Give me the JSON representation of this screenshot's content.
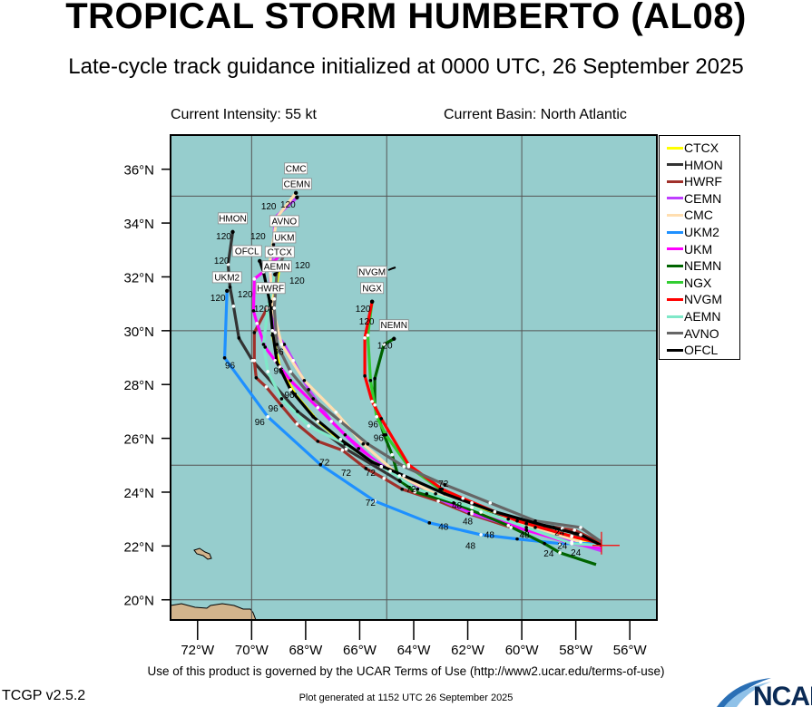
{
  "header": {
    "title": "TROPICAL STORM HUMBERTO (AL08)",
    "subtitle": "Late-cycle track guidance initialized at 0000 UTC, 26 September 2025",
    "current_intensity": "Current Intensity: 55 kt",
    "current_basin": "Current Basin: North Atlantic"
  },
  "footer": {
    "terms": "Use of this product is governed by the UCAR Terms of Use (http://www2.ucar.edu/terms-of-use)",
    "version": "TCGP v2.5.2",
    "generated": "Plot generated at 1152 UTC   26 September 2025",
    "logo_text": "NCAR"
  },
  "map": {
    "lon_range": [
      -73,
      -55
    ],
    "lat_range": [
      19.25,
      37.27
    ],
    "gridlines_lon": [
      -70,
      -65,
      -60
    ],
    "gridlines_lat": [
      20,
      25,
      30,
      35
    ],
    "ocean_color": "#96cdcd",
    "land_color": "#d2b48c",
    "lon_ticks": [
      {
        "value": -72,
        "label": "72°W"
      },
      {
        "value": -70,
        "label": "70°W"
      },
      {
        "value": -68,
        "label": "68°W"
      },
      {
        "value": -66,
        "label": "66°W"
      },
      {
        "value": -64,
        "label": "64°W"
      },
      {
        "value": -62,
        "label": "62°W"
      },
      {
        "value": -60,
        "label": "60°W"
      },
      {
        "value": -58,
        "label": "58°W"
      },
      {
        "value": -56,
        "label": "56°W"
      }
    ],
    "lat_ticks": [
      {
        "value": 36,
        "label": "36°N"
      },
      {
        "value": 34,
        "label": "34°N"
      },
      {
        "value": 32,
        "label": "32°N"
      },
      {
        "value": 30,
        "label": "30°N"
      },
      {
        "value": 28,
        "label": "28°N"
      },
      {
        "value": 26,
        "label": "26°N"
      },
      {
        "value": 24,
        "label": "24°N"
      },
      {
        "value": 22,
        "label": "22°N"
      },
      {
        "value": 20,
        "label": "20°N"
      }
    ],
    "current_position": {
      "lon": -57.05,
      "lat": 22.02,
      "color": "#ff0000"
    },
    "end_hour_label": "120"
  },
  "chart_data": {
    "type": "line",
    "xlabel": "",
    "ylabel": "",
    "series": [
      {
        "name": "CTCX",
        "color": "#ffff00",
        "points": [
          [
            -57.05,
            22.02
          ],
          [
            -58.15,
            22.36
          ],
          [
            -59.83,
            22.83
          ],
          [
            -61.85,
            23.43
          ],
          [
            -63.86,
            24.11
          ],
          [
            -65.2,
            24.95
          ],
          [
            -66.54,
            25.79
          ],
          [
            -67.55,
            26.63
          ],
          [
            -68.39,
            27.64
          ],
          [
            -68.96,
            28.65
          ],
          [
            -69.23,
            29.83
          ],
          [
            -69.16,
            31.18
          ],
          [
            -68.96,
            32.42
          ]
        ]
      },
      {
        "name": "HMON",
        "color": "#333333",
        "points": [
          [
            -57.05,
            22.02
          ],
          [
            -58.5,
            22.65
          ],
          [
            -60.5,
            23.0
          ],
          [
            -62.5,
            23.6
          ],
          [
            -64.5,
            24.4
          ],
          [
            -66.5,
            25.6
          ],
          [
            -68.3,
            27.0
          ],
          [
            -69.97,
            28.89
          ],
          [
            -70.47,
            29.73
          ],
          [
            -70.67,
            30.91
          ],
          [
            -70.8,
            31.62
          ],
          [
            -70.87,
            32.46
          ],
          [
            -70.7,
            33.67
          ]
        ]
      },
      {
        "name": "HWRF",
        "color": "#a0302a",
        "points": [
          [
            -57.05,
            22.09
          ],
          [
            -58.05,
            22.59
          ],
          [
            -58.83,
            22.69
          ],
          [
            -60.4,
            22.69
          ],
          [
            -61.95,
            23.2
          ],
          [
            -63.09,
            23.67
          ],
          [
            -64.43,
            24.11
          ],
          [
            -65.1,
            24.51
          ],
          [
            -65.77,
            24.88
          ],
          [
            -66.64,
            25.56
          ],
          [
            -67.55,
            25.89
          ],
          [
            -68.32,
            26.53
          ],
          [
            -68.89,
            27.21
          ],
          [
            -69.46,
            27.91
          ],
          [
            -69.83,
            28.25
          ],
          [
            -69.9,
            28.89
          ],
          [
            -69.9,
            29.93
          ],
          [
            -69.3,
            31.08
          ]
        ]
      },
      {
        "name": "CEMN",
        "color": "#bf3eff",
        "points": [
          [
            -57.05,
            21.82
          ],
          [
            -58.15,
            22.15
          ],
          [
            -59.83,
            22.59
          ],
          [
            -61.85,
            23.2
          ],
          [
            -63.52,
            23.94
          ],
          [
            -64.87,
            24.78
          ],
          [
            -66.04,
            25.62
          ],
          [
            -67.05,
            26.63
          ],
          [
            -67.89,
            27.81
          ],
          [
            -68.46,
            28.89
          ],
          [
            -68.79,
            29.49
          ],
          [
            -69.13,
            29.93
          ],
          [
            -69.33,
            30.84
          ],
          [
            -69.3,
            32.19
          ],
          [
            -69.19,
            33.2
          ],
          [
            -69.13,
            34.21
          ],
          [
            -68.32,
            34.95
          ]
        ]
      },
      {
        "name": "CMC",
        "color": "#ffdeb0",
        "points": [
          [
            -57.05,
            21.92
          ],
          [
            -57.82,
            22.15
          ],
          [
            -59.5,
            22.69
          ],
          [
            -61.51,
            23.26
          ],
          [
            -63.19,
            23.94
          ],
          [
            -64.53,
            24.61
          ],
          [
            -65.87,
            25.79
          ],
          [
            -66.88,
            26.97
          ],
          [
            -68.05,
            28.15
          ],
          [
            -68.89,
            29.49
          ],
          [
            -69.23,
            30.84
          ],
          [
            -69.33,
            32.53
          ],
          [
            -69.06,
            34.21
          ],
          [
            -68.36,
            35.12
          ]
        ]
      },
      {
        "name": "UKM2",
        "color": "#1e90ff",
        "points": [
          [
            -57.05,
            22.09
          ],
          [
            -58.59,
            22.09
          ],
          [
            -60.17,
            22.26
          ],
          [
            -61.51,
            22.42
          ],
          [
            -63.42,
            22.86
          ],
          [
            -65.44,
            23.67
          ],
          [
            -67.45,
            25.02
          ],
          [
            -69.4,
            26.8
          ],
          [
            -71.0,
            28.99
          ],
          [
            -70.91,
            31.48
          ]
        ]
      },
      {
        "name": "UKM",
        "color": "#ff00ff",
        "points": [
          [
            -57.05,
            21.92
          ],
          [
            -58.15,
            22.09
          ],
          [
            -59.83,
            22.59
          ],
          [
            -61.85,
            23.27
          ],
          [
            -63.86,
            24.11
          ],
          [
            -65.2,
            24.95
          ],
          [
            -66.54,
            26.13
          ],
          [
            -67.55,
            27.14
          ],
          [
            -68.56,
            28.15
          ],
          [
            -69.13,
            28.89
          ],
          [
            -69.5,
            29.39
          ],
          [
            -69.8,
            30.27
          ],
          [
            -69.93,
            30.74
          ],
          [
            -69.9,
            31.92
          ],
          [
            -69.56,
            32.19
          ],
          [
            -68.79,
            32.96
          ]
        ]
      },
      {
        "name": "NEMN",
        "color": "#006400",
        "points": [
          [
            -57.25,
            21.31
          ],
          [
            -58.59,
            21.75
          ],
          [
            -59.16,
            22.09
          ],
          [
            -60.5,
            22.76
          ],
          [
            -62.52,
            23.6
          ],
          [
            -63.96,
            24.01
          ],
          [
            -64.53,
            24.44
          ],
          [
            -64.8,
            25.39
          ],
          [
            -65.1,
            26.13
          ],
          [
            -65.44,
            27.24
          ],
          [
            -65.44,
            28.22
          ],
          [
            -65.1,
            29.49
          ],
          [
            -64.73,
            29.7
          ]
        ]
      },
      {
        "name": "NGX",
        "color": "#32cd32",
        "points": [
          [
            -57.05,
            22.09
          ],
          [
            -58.15,
            22.36
          ],
          [
            -59.83,
            22.83
          ],
          [
            -61.85,
            23.6
          ],
          [
            -63.02,
            24.11
          ],
          [
            -64.19,
            24.95
          ],
          [
            -65.03,
            26.13
          ],
          [
            -65.37,
            26.8
          ],
          [
            -65.6,
            28.15
          ],
          [
            -65.7,
            29.83
          ],
          [
            -65.54,
            31.08
          ]
        ]
      },
      {
        "name": "NVGM",
        "color": "#ff0000",
        "points": [
          [
            -57.05,
            22.09
          ],
          [
            -58.15,
            22.36
          ],
          [
            -60.17,
            22.93
          ],
          [
            -62.18,
            23.77
          ],
          [
            -62.95,
            24.11
          ],
          [
            -64.19,
            25.02
          ],
          [
            -65.2,
            26.73
          ],
          [
            -65.54,
            27.37
          ],
          [
            -65.81,
            28.32
          ],
          [
            -65.81,
            29.73
          ],
          [
            -65.54,
            31.08
          ]
        ]
      },
      {
        "name": "AEMN",
        "color": "#7fe8c8",
        "points": [
          [
            -57.05,
            22.02
          ],
          [
            -58.15,
            22.09
          ],
          [
            -59.83,
            22.69
          ],
          [
            -61.85,
            23.43
          ],
          [
            -63.86,
            24.11
          ],
          [
            -65.2,
            24.95
          ],
          [
            -66.54,
            25.79
          ],
          [
            -67.89,
            26.46
          ],
          [
            -68.89,
            27.47
          ],
          [
            -69.4,
            28.48
          ],
          [
            -69.56,
            29.49
          ],
          [
            -69.4,
            30.84
          ],
          [
            -69.13,
            32.09
          ]
        ]
      },
      {
        "name": "AVNO",
        "color": "#666666",
        "points": [
          [
            -57.05,
            22.15
          ],
          [
            -57.82,
            22.69
          ],
          [
            -59.5,
            22.93
          ],
          [
            -61.17,
            23.6
          ],
          [
            -62.85,
            24.28
          ],
          [
            -64.36,
            24.95
          ],
          [
            -65.7,
            25.79
          ],
          [
            -66.71,
            26.63
          ],
          [
            -67.72,
            27.47
          ],
          [
            -68.56,
            28.48
          ],
          [
            -69.06,
            29.49
          ],
          [
            -69.16,
            30.84
          ],
          [
            -69.06,
            32.19
          ],
          [
            -68.79,
            32.86
          ]
        ]
      },
      {
        "name": "OFCL",
        "color": "#000000",
        "points": [
          [
            -57.05,
            22.02
          ],
          [
            -57.82,
            22.42
          ],
          [
            -59.16,
            22.76
          ],
          [
            -61.0,
            23.27
          ],
          [
            -62.85,
            23.94
          ],
          [
            -64.36,
            24.61
          ],
          [
            -65.54,
            25.12
          ],
          [
            -66.71,
            25.96
          ],
          [
            -67.72,
            26.8
          ],
          [
            -68.56,
            27.81
          ],
          [
            -69.06,
            28.82
          ],
          [
            -69.23,
            30.0
          ],
          [
            -69.33,
            31.08
          ],
          [
            -69.56,
            32.19
          ],
          [
            -69.7,
            32.59
          ]
        ]
      }
    ],
    "hour_labels": [
      {
        "text": "96",
        "lon": -70.8,
        "lat": 28.6
      },
      {
        "text": "96",
        "lon": -69.2,
        "lat": 27.0
      },
      {
        "text": "96",
        "lon": -69.7,
        "lat": 26.5
      },
      {
        "text": "96",
        "lon": -69.0,
        "lat": 28.4
      },
      {
        "text": "96",
        "lon": -68.6,
        "lat": 27.5
      },
      {
        "text": "96",
        "lon": -69.0,
        "lat": 29.1
      },
      {
        "text": "96",
        "lon": -65.5,
        "lat": 26.4
      },
      {
        "text": "96",
        "lon": -65.3,
        "lat": 25.9
      },
      {
        "text": "72",
        "lon": -67.3,
        "lat": 25.0
      },
      {
        "text": "72",
        "lon": -66.5,
        "lat": 24.6
      },
      {
        "text": "72",
        "lon": -65.6,
        "lat": 24.6
      },
      {
        "text": "72",
        "lon": -64.1,
        "lat": 24.0
      },
      {
        "text": "72",
        "lon": -65.6,
        "lat": 23.5
      },
      {
        "text": "72",
        "lon": -62.9,
        "lat": 24.2
      },
      {
        "text": "48",
        "lon": -62.4,
        "lat": 23.4
      },
      {
        "text": "48",
        "lon": -62.0,
        "lat": 22.8
      },
      {
        "text": "48",
        "lon": -62.9,
        "lat": 22.6
      },
      {
        "text": "48",
        "lon": -61.2,
        "lat": 22.3
      },
      {
        "text": "48",
        "lon": -61.9,
        "lat": 21.9
      },
      {
        "text": "48",
        "lon": -59.9,
        "lat": 22.3
      },
      {
        "text": "24",
        "lon": -58.6,
        "lat": 22.4
      },
      {
        "text": "24",
        "lon": -58.5,
        "lat": 22.0
      },
      {
        "text": "24",
        "lon": -58.9,
        "lat": 21.6
      },
      {
        "text": "24",
        "lon": -58.2,
        "lat": 21.6
      }
    ]
  },
  "legend": [
    {
      "name": "CTCX",
      "color": "#ffff00"
    },
    {
      "name": "HMON",
      "color": "#333333"
    },
    {
      "name": "HWRF",
      "color": "#a0302a"
    },
    {
      "name": "CEMN",
      "color": "#bf3eff"
    },
    {
      "name": "CMC",
      "color": "#ffdeb0"
    },
    {
      "name": "UKM2",
      "color": "#1e90ff"
    },
    {
      "name": "UKM",
      "color": "#ff00ff"
    },
    {
      "name": "NEMN",
      "color": "#006400"
    },
    {
      "name": "NGX",
      "color": "#32cd32"
    },
    {
      "name": "NVGM",
      "color": "#ff0000"
    },
    {
      "name": "AEMN",
      "color": "#7fe8c8"
    },
    {
      "name": "AVNO",
      "color": "#666666"
    },
    {
      "name": "OFCL",
      "color": "#000000"
    }
  ]
}
